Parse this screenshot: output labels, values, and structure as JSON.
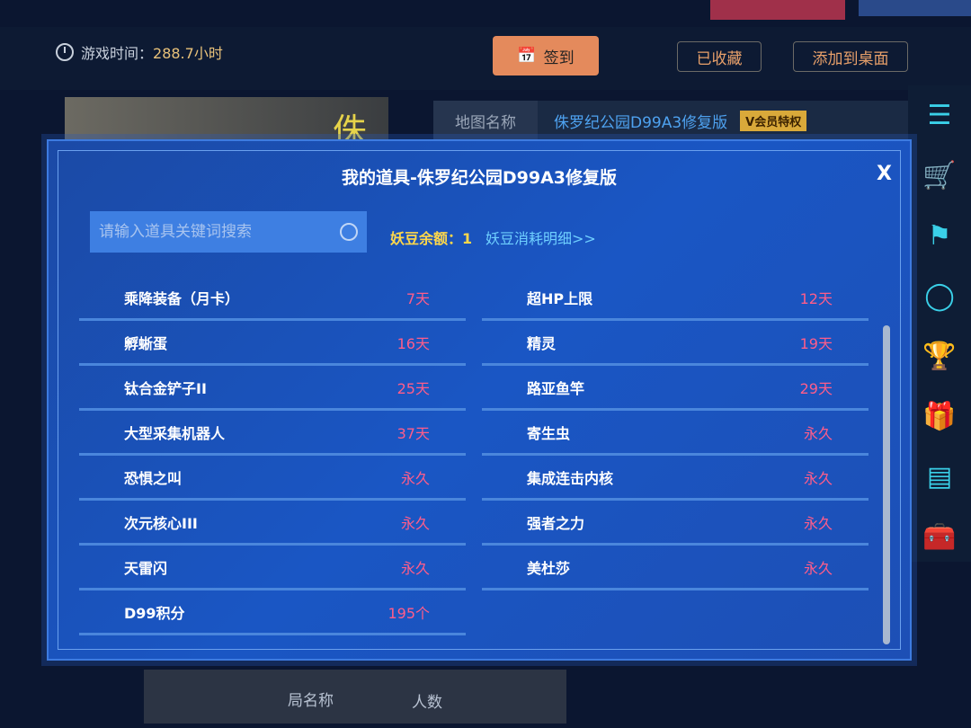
{
  "header": {
    "game_time_label": "游戏时间：",
    "game_time_value": "288.7小时",
    "signin": "签到",
    "favorited": "已收藏",
    "add_desktop": "添加到桌面"
  },
  "banner": {
    "title_char": "侏"
  },
  "map": {
    "label": "地图名称",
    "name": "侏罗纪公园D99A3修复版",
    "vip": "V会员特权"
  },
  "sidebar": {
    "icons": [
      "notes-icon",
      "cart-icon",
      "flag-icon",
      "chat-icon",
      "trophy-icon",
      "gift-icon",
      "checklist-icon",
      "toolbox-icon"
    ]
  },
  "bottom": {
    "col1": "局名称",
    "col2": "人数"
  },
  "modal": {
    "title": "我的道具-侏罗纪公园D99A3修复版",
    "close": "X",
    "search_placeholder": "请输入道具关键词搜索",
    "balance": "妖豆余额：1",
    "detail_link": "妖豆消耗明细>>",
    "left_items": [
      {
        "name": "乘降装备（月卡）",
        "duration": "7天"
      },
      {
        "name": "孵蜥蛋",
        "duration": "16天"
      },
      {
        "name": "钛合金铲子II",
        "duration": "25天"
      },
      {
        "name": "大型采集机器人",
        "duration": "37天"
      },
      {
        "name": "恐惧之叫",
        "duration": "永久"
      },
      {
        "name": "次元核心III",
        "duration": "永久"
      },
      {
        "name": "天雷闪",
        "duration": "永久"
      },
      {
        "name": "D99积分",
        "duration": "195个"
      }
    ],
    "right_items": [
      {
        "name": "超HP上限",
        "duration": "12天"
      },
      {
        "name": "精灵",
        "duration": "19天"
      },
      {
        "name": "路亚鱼竿",
        "duration": "29天"
      },
      {
        "name": "寄生虫",
        "duration": "永久"
      },
      {
        "name": "集成连击内核",
        "duration": "永久"
      },
      {
        "name": "强者之力",
        "duration": "永久"
      },
      {
        "name": "美杜莎",
        "duration": "永久"
      }
    ]
  },
  "colors": {
    "accent": "#e48a5c",
    "duration": "#ff5d8a",
    "balance": "#ffd84a",
    "link": "#6fd0ff",
    "modal": "#1a56c4"
  }
}
